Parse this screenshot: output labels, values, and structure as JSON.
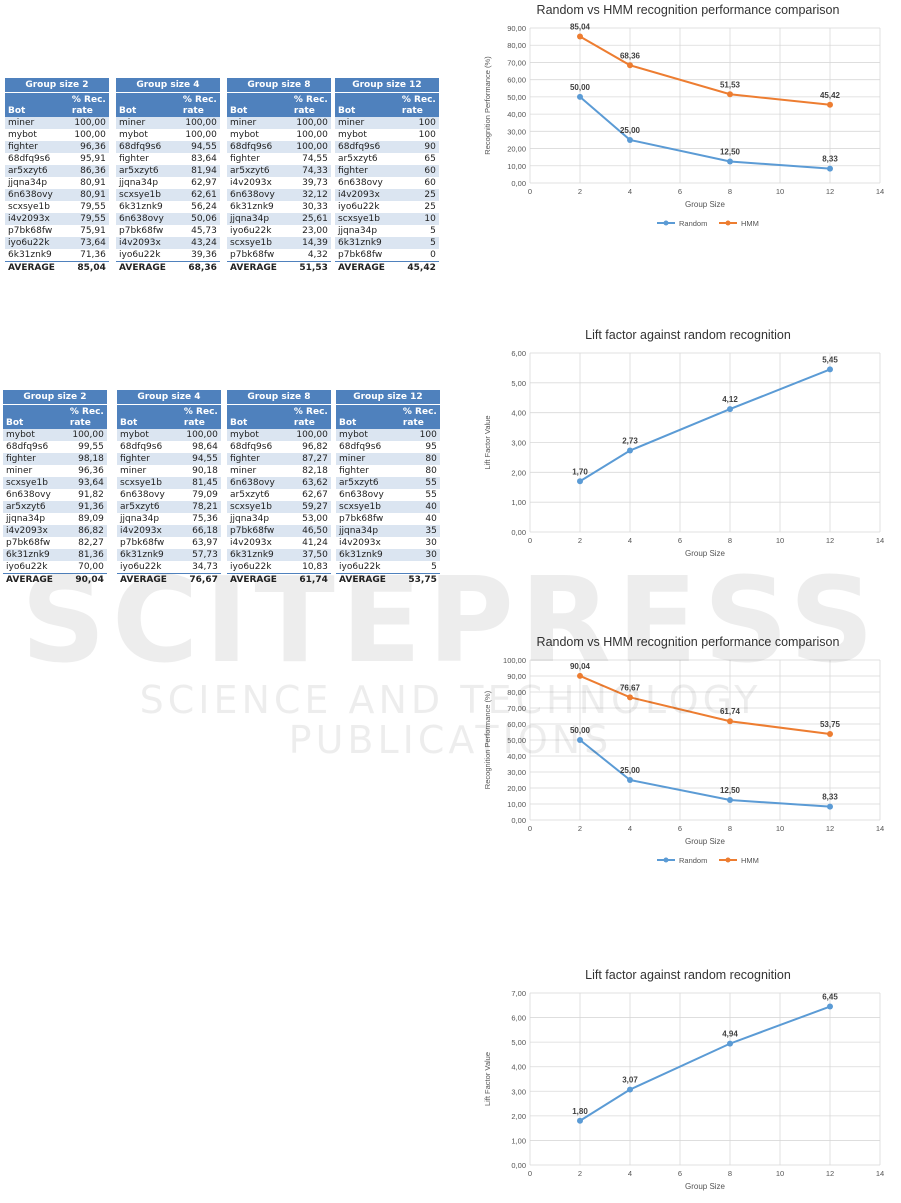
{
  "tables_set1": [
    {
      "title": "Group size 2",
      "col_bot": "Bot",
      "col_rate_1": "% Rec.",
      "col_rate_2": "rate",
      "rows": [
        [
          "miner",
          "100,00"
        ],
        [
          "mybot",
          "100,00"
        ],
        [
          "fighter",
          "96,36"
        ],
        [
          "68dfq9s6",
          "95,91"
        ],
        [
          "ar5xzyt6",
          "86,36"
        ],
        [
          "jjqna34p",
          "80,91"
        ],
        [
          "6n638ovy",
          "80,91"
        ],
        [
          "scxsye1b",
          "79,55"
        ],
        [
          "i4v2093x",
          "79,55"
        ],
        [
          "p7bk68fw",
          "75,91"
        ],
        [
          "iyo6u22k",
          "73,64"
        ],
        [
          "6k31znk9",
          "71,36"
        ]
      ],
      "avg_label": "AVERAGE",
      "avg_value": "85,04"
    },
    {
      "title": "Group size 4",
      "col_bot": "Bot",
      "col_rate_1": "% Rec.",
      "col_rate_2": "rate",
      "rows": [
        [
          "miner",
          "100,00"
        ],
        [
          "mybot",
          "100,00"
        ],
        [
          "68dfq9s6",
          "94,55"
        ],
        [
          "fighter",
          "83,64"
        ],
        [
          "ar5xzyt6",
          "81,94"
        ],
        [
          "jjqna34p",
          "62,97"
        ],
        [
          "scxsye1b",
          "62,61"
        ],
        [
          "6k31znk9",
          "56,24"
        ],
        [
          "6n638ovy",
          "50,06"
        ],
        [
          "p7bk68fw",
          "45,73"
        ],
        [
          "i4v2093x",
          "43,24"
        ],
        [
          "iyo6u22k",
          "39,36"
        ]
      ],
      "avg_label": "AVERAGE",
      "avg_value": "68,36"
    },
    {
      "title": "Group size 8",
      "col_bot": "Bot",
      "col_rate_1": "% Rec.",
      "col_rate_2": "rate",
      "rows": [
        [
          "miner",
          "100,00"
        ],
        [
          "mybot",
          "100,00"
        ],
        [
          "68dfq9s6",
          "100,00"
        ],
        [
          "fighter",
          "74,55"
        ],
        [
          "ar5xzyt6",
          "74,33"
        ],
        [
          "i4v2093x",
          "39,73"
        ],
        [
          "6n638ovy",
          "32,12"
        ],
        [
          "6k31znk9",
          "30,33"
        ],
        [
          "jjqna34p",
          "25,61"
        ],
        [
          "iyo6u22k",
          "23,00"
        ],
        [
          "scxsye1b",
          "14,39"
        ],
        [
          "p7bk68fw",
          "4,32"
        ]
      ],
      "avg_label": "AVERAGE",
      "avg_value": "51,53"
    },
    {
      "title": "Group size 12",
      "col_bot": "Bot",
      "col_rate_1": "% Rec.",
      "col_rate_2": "rate",
      "rows": [
        [
          "miner",
          "100"
        ],
        [
          "mybot",
          "100"
        ],
        [
          "68dfq9s6",
          "90"
        ],
        [
          "ar5xzyt6",
          "65"
        ],
        [
          "fighter",
          "60"
        ],
        [
          "6n638ovy",
          "60"
        ],
        [
          "i4v2093x",
          "25"
        ],
        [
          "iyo6u22k",
          "25"
        ],
        [
          "scxsye1b",
          "10"
        ],
        [
          "jjqna34p",
          "5"
        ],
        [
          "6k31znk9",
          "5"
        ],
        [
          "p7bk68fw",
          "0"
        ]
      ],
      "avg_label": "AVERAGE",
      "avg_value": "45,42"
    }
  ],
  "tables_set2": [
    {
      "title": "Group size 2",
      "col_bot": "Bot",
      "col_rate_1": "% Rec.",
      "col_rate_2": "rate",
      "rows": [
        [
          "mybot",
          "100,00"
        ],
        [
          "68dfq9s6",
          "99,55"
        ],
        [
          "fighter",
          "98,18"
        ],
        [
          "miner",
          "96,36"
        ],
        [
          "scxsye1b",
          "93,64"
        ],
        [
          "6n638ovy",
          "91,82"
        ],
        [
          "ar5xzyt6",
          "91,36"
        ],
        [
          "jjqna34p",
          "89,09"
        ],
        [
          "i4v2093x",
          "86,82"
        ],
        [
          "p7bk68fw",
          "82,27"
        ],
        [
          "6k31znk9",
          "81,36"
        ],
        [
          "iyo6u22k",
          "70,00"
        ]
      ],
      "avg_label": "AVERAGE",
      "avg_value": "90,04"
    },
    {
      "title": "Group size 4",
      "col_bot": "Bot",
      "col_rate_1": "% Rec.",
      "col_rate_2": "rate",
      "rows": [
        [
          "mybot",
          "100,00"
        ],
        [
          "68dfq9s6",
          "98,64"
        ],
        [
          "fighter",
          "94,55"
        ],
        [
          "miner",
          "90,18"
        ],
        [
          "scxsye1b",
          "81,45"
        ],
        [
          "6n638ovy",
          "79,09"
        ],
        [
          "ar5xzyt6",
          "78,21"
        ],
        [
          "jjqna34p",
          "75,36"
        ],
        [
          "i4v2093x",
          "66,18"
        ],
        [
          "p7bk68fw",
          "63,97"
        ],
        [
          "6k31znk9",
          "57,73"
        ],
        [
          "iyo6u22k",
          "34,73"
        ]
      ],
      "avg_label": "AVERAGE",
      "avg_value": "76,67"
    },
    {
      "title": "Group size 8",
      "col_bot": "Bot",
      "col_rate_1": "% Rec.",
      "col_rate_2": "rate",
      "rows": [
        [
          "mybot",
          "100,00"
        ],
        [
          "68dfq9s6",
          "96,82"
        ],
        [
          "fighter",
          "87,27"
        ],
        [
          "miner",
          "82,18"
        ],
        [
          "6n638ovy",
          "63,62"
        ],
        [
          "ar5xzyt6",
          "62,67"
        ],
        [
          "scxsye1b",
          "59,27"
        ],
        [
          "jjqna34p",
          "53,00"
        ],
        [
          "p7bk68fw",
          "46,50"
        ],
        [
          "i4v2093x",
          "41,24"
        ],
        [
          "6k31znk9",
          "37,50"
        ],
        [
          "iyo6u22k",
          "10,83"
        ]
      ],
      "avg_label": "AVERAGE",
      "avg_value": "61,74"
    },
    {
      "title": "Group size 12",
      "col_bot": "Bot",
      "col_rate_1": "% Rec.",
      "col_rate_2": "rate",
      "rows": [
        [
          "mybot",
          "100"
        ],
        [
          "68dfq9s6",
          "95"
        ],
        [
          "miner",
          "80"
        ],
        [
          "fighter",
          "80"
        ],
        [
          "ar5xzyt6",
          "55"
        ],
        [
          "6n638ovy",
          "55"
        ],
        [
          "scxsye1b",
          "40"
        ],
        [
          "p7bk68fw",
          "40"
        ],
        [
          "jjqna34p",
          "35"
        ],
        [
          "i4v2093x",
          "30"
        ],
        [
          "6k31znk9",
          "30"
        ],
        [
          "iyo6u22k",
          "5"
        ]
      ],
      "avg_label": "AVERAGE",
      "avg_value": "53,75"
    }
  ],
  "watermark": {
    "line1": "SCITEPRESS",
    "line2": "SCIENCE AND TECHNOLOGY PUBLICATIONS"
  },
  "colors": {
    "random": "#5b9bd5",
    "hmm": "#ed7d31",
    "table_header": "#4f81bd",
    "table_band": "#dbe5f1"
  },
  "chart_data": [
    {
      "type": "line",
      "title": "Random vs HMM recognition performance comparison",
      "xlabel": "Group Size",
      "ylabel": "Recognition Performance (%)",
      "xlim": [
        0,
        14
      ],
      "ylim": [
        0,
        90
      ],
      "xticks": [
        0,
        2,
        4,
        6,
        8,
        10,
        12,
        14
      ],
      "yticks": [
        "0,00",
        "10,00",
        "20,00",
        "30,00",
        "40,00",
        "50,00",
        "60,00",
        "70,00",
        "80,00",
        "90,00"
      ],
      "x": [
        2,
        4,
        8,
        12
      ],
      "series": [
        {
          "name": "Random",
          "values": [
            50.0,
            25.0,
            12.5,
            8.33
          ],
          "labels": [
            "50,00",
            "25,00",
            "12,50",
            "8,33"
          ]
        },
        {
          "name": "HMM",
          "values": [
            85.04,
            68.36,
            51.53,
            45.42
          ],
          "labels": [
            "85,04",
            "68,36",
            "51,53",
            "45,42"
          ]
        }
      ],
      "legend": "bottom",
      "grid": true
    },
    {
      "type": "line",
      "title": "Lift factor against random recognition",
      "xlabel": "Group Size",
      "ylabel": "Lift Factor Value",
      "xlim": [
        0,
        14
      ],
      "ylim": [
        0,
        6
      ],
      "xticks": [
        0,
        2,
        4,
        6,
        8,
        10,
        12,
        14
      ],
      "yticks": [
        "0,00",
        "1,00",
        "2,00",
        "3,00",
        "4,00",
        "5,00",
        "6,00"
      ],
      "x": [
        2,
        4,
        8,
        12
      ],
      "series": [
        {
          "values": [
            1.7,
            2.73,
            4.12,
            5.45
          ],
          "labels": [
            "1,70",
            "2,73",
            "4,12",
            "5,45"
          ]
        }
      ],
      "grid": true
    },
    {
      "type": "line",
      "title": "Random vs HMM recognition performance comparison",
      "xlabel": "Group Size",
      "ylabel": "Recognition Performance (%)",
      "xlim": [
        0,
        14
      ],
      "ylim": [
        0,
        100
      ],
      "xticks": [
        0,
        2,
        4,
        6,
        8,
        10,
        12,
        14
      ],
      "yticks": [
        "0,00",
        "10,00",
        "20,00",
        "30,00",
        "40,00",
        "50,00",
        "60,00",
        "70,00",
        "80,00",
        "90,00",
        "100,00"
      ],
      "x": [
        2,
        4,
        8,
        12
      ],
      "series": [
        {
          "name": "Random",
          "values": [
            50.0,
            25.0,
            12.5,
            8.33
          ],
          "labels": [
            "50,00",
            "25,00",
            "12,50",
            "8,33"
          ]
        },
        {
          "name": "HMM",
          "values": [
            90.04,
            76.67,
            61.74,
            53.75
          ],
          "labels": [
            "90,04",
            "76,67",
            "61,74",
            "53,75"
          ]
        }
      ],
      "legend": "bottom",
      "grid": true
    },
    {
      "type": "line",
      "title": "Lift factor against random recognition",
      "xlabel": "Group Size",
      "ylabel": "Lift Factor Value",
      "xlim": [
        0,
        14
      ],
      "ylim": [
        0,
        7
      ],
      "xticks": [
        0,
        2,
        4,
        6,
        8,
        10,
        12,
        14
      ],
      "yticks": [
        "0,00",
        "1,00",
        "2,00",
        "3,00",
        "4,00",
        "5,00",
        "6,00",
        "7,00"
      ],
      "x": [
        2,
        4,
        8,
        12
      ],
      "series": [
        {
          "values": [
            1.8,
            3.07,
            4.94,
            6.45
          ],
          "labels": [
            "1,80",
            "3,07",
            "4,94",
            "6,45"
          ]
        }
      ],
      "grid": true
    }
  ]
}
